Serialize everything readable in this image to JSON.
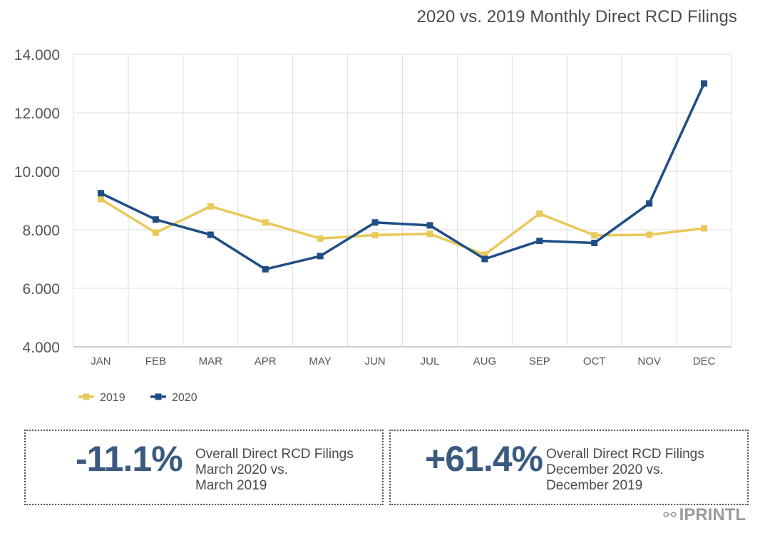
{
  "chart_data": {
    "type": "line",
    "title": "2020 vs. 2019 Monthly Direct RCD Filings",
    "categories": [
      "JAN",
      "FEB",
      "MAR",
      "APR",
      "MAY",
      "JUN",
      "JUL",
      "AUG",
      "SEP",
      "OCT",
      "NOV",
      "DEC"
    ],
    "series": [
      {
        "name": "2019",
        "color": "#e8c95a",
        "values": [
          9050,
          7900,
          8800,
          8250,
          7700,
          7820,
          7860,
          7150,
          8550,
          7810,
          7830,
          8050
        ]
      },
      {
        "name": "2020",
        "color": "#1f4e85",
        "values": [
          9250,
          8350,
          7830,
          6650,
          7100,
          8250,
          8150,
          7000,
          7620,
          7550,
          8900,
          13000
        ]
      }
    ],
    "y_ticks": [
      "14.000",
      "12.000",
      "10.000",
      "8.000",
      "6.000",
      "4.000"
    ],
    "ylim": [
      4000,
      14000
    ],
    "grid": true,
    "legend_position": "bottom-left"
  },
  "stats": [
    {
      "value": "-11.1%",
      "lines": [
        "Overall Direct RCD Filings",
        "March 2020 vs.",
        "March 2019"
      ]
    },
    {
      "value": "+61.4%",
      "lines": [
        "Overall Direct RCD Filings",
        "December 2020 vs.",
        "December 2019"
      ]
    }
  ],
  "watermark": {
    "icon": "wechat-icon",
    "text": "IPRINTL"
  }
}
